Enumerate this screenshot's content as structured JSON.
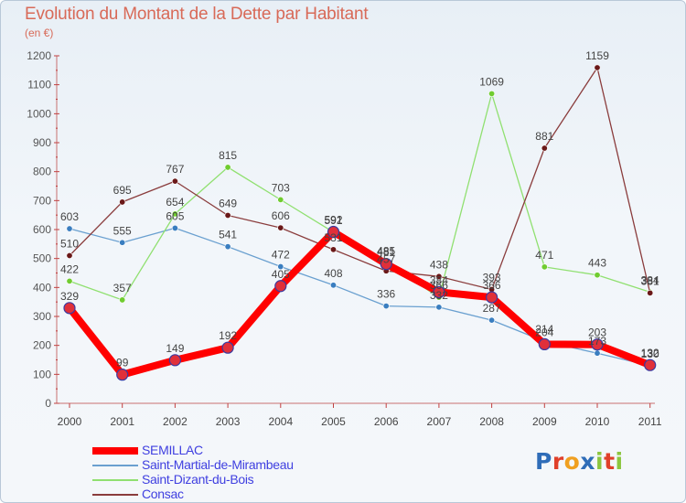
{
  "title": "Evolution du Montant de la Dette par Habitant",
  "subtitle": "(en €)",
  "logo": {
    "text": "Proxiti",
    "letters": [
      {
        "ch": "P",
        "color": "#2f6db8"
      },
      {
        "ch": "r",
        "color": "#e0402a"
      },
      {
        "ch": "o",
        "color": "#f0a020"
      },
      {
        "ch": "x",
        "color": "#2f6db8"
      },
      {
        "ch": "i",
        "color": "#8cc63f"
      },
      {
        "ch": "t",
        "color": "#e0402a"
      },
      {
        "ch": "i",
        "color": "#8cc63f"
      }
    ]
  },
  "chart_data": {
    "type": "line",
    "title": "Evolution du Montant de la Dette par Habitant",
    "subtitle": "(en €)",
    "xlabel": "",
    "ylabel": "",
    "categories": [
      "2000",
      "2001",
      "2002",
      "2003",
      "2004",
      "2005",
      "2006",
      "2007",
      "2008",
      "2009",
      "2010",
      "2011"
    ],
    "ylim": [
      0,
      1200
    ],
    "yticks": [
      0,
      100,
      200,
      300,
      400,
      500,
      600,
      700,
      800,
      900,
      1000,
      1100,
      1200
    ],
    "grid": false,
    "legend_position": "bottom-left",
    "series": [
      {
        "name": "SEMILLAC",
        "color": "#ff0000",
        "marker": "#e0303a",
        "width": 8,
        "values": [
          329,
          99,
          149,
          192,
          405,
          592,
          481,
          384,
          366,
          204,
          203,
          132
        ],
        "labels": [
          "329",
          "99",
          "149",
          "192",
          "405",
          "592",
          "481",
          "384",
          "366",
          "204",
          "203",
          "132"
        ]
      },
      {
        "name": "Saint-Martial-de-Mirambeau",
        "color": "#6aa0d0",
        "marker": "#3a7ec0",
        "width": 1.3,
        "values": [
          603,
          555,
          605,
          541,
          472,
          408,
          336,
          332,
          287,
          214,
          173,
          130
        ],
        "labels": [
          "603",
          "555",
          "605",
          "541",
          "472",
          "408",
          "336",
          "332",
          "287",
          "214",
          "173",
          "130"
        ]
      },
      {
        "name": "Saint-Dizant-du-Bois",
        "color": "#90e070",
        "marker": "#70cc30",
        "width": 1.3,
        "values": [
          422,
          357,
          654,
          815,
          703,
          591,
          485,
          366,
          1069,
          471,
          443,
          384
        ],
        "labels": [
          "422",
          "357",
          "654",
          "815",
          "703",
          "591",
          "485",
          "366",
          "1069",
          "471",
          "443",
          "384"
        ]
      },
      {
        "name": "Consac",
        "color": "#8a3c3c",
        "marker": "#6a1818",
        "width": 1.3,
        "values": [
          510,
          695,
          767,
          649,
          606,
          531,
          457,
          438,
          393,
          881,
          1159,
          381
        ],
        "labels": [
          "510",
          "695",
          "767",
          "649",
          "606",
          "531",
          "457",
          "438",
          "393",
          "881",
          "1159",
          "381"
        ]
      }
    ]
  }
}
